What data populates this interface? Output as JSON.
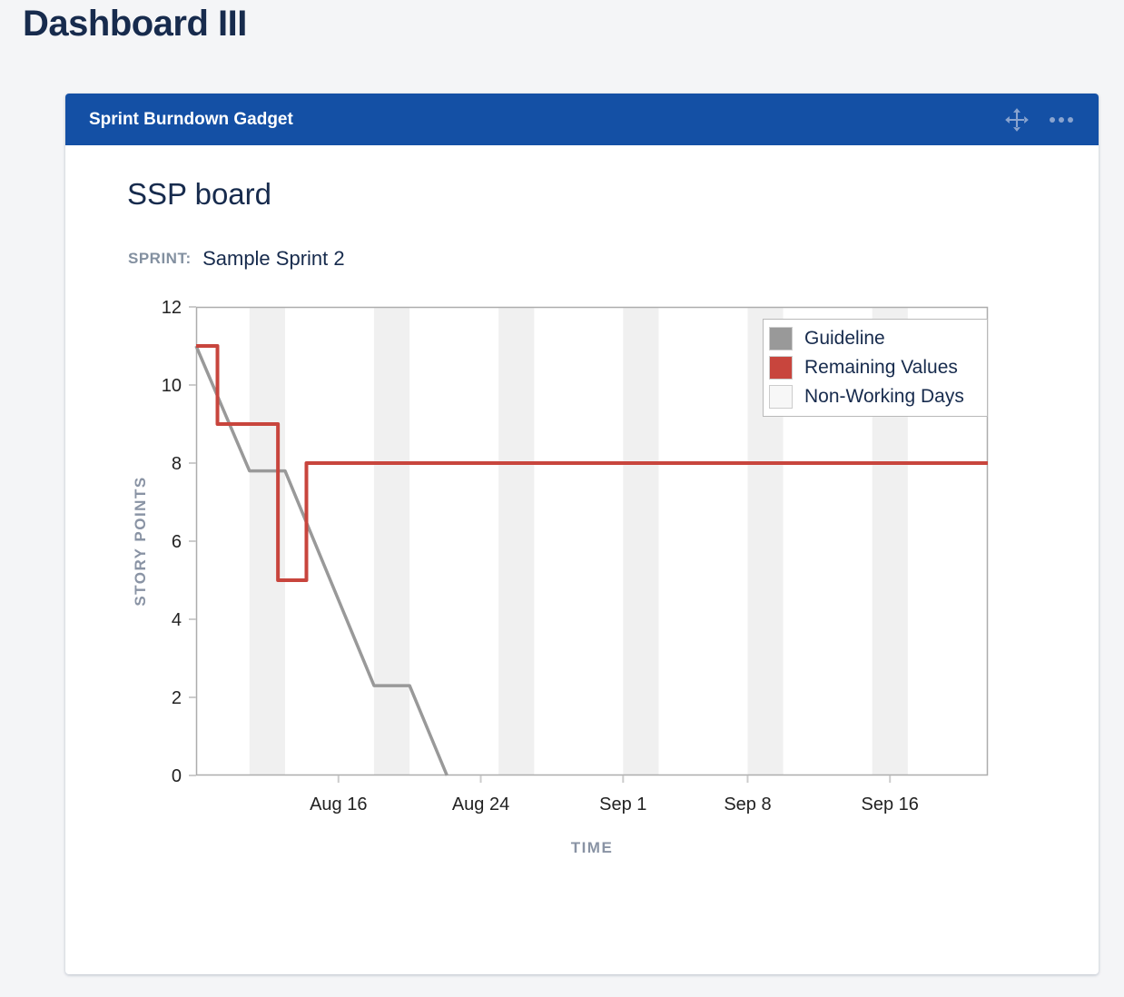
{
  "page": {
    "title": "Dashboard III",
    "background_color": "#f4f5f7"
  },
  "gadget": {
    "title": "Sprint Burndown Gadget",
    "header_color": "#1450a5",
    "icon_color": "#8aa4cf"
  },
  "board": {
    "title": "SSP board",
    "sprint_label": "SPRINT:",
    "sprint_value": "Sample Sprint 2"
  },
  "chart_data": {
    "type": "line",
    "title": "",
    "xlabel": "TIME",
    "ylabel": "STORY POINTS",
    "x_unit": "days (day 0 = Aug 7, chart spans Aug 8 to ~Sep 21)",
    "xlim": [
      1,
      45.5
    ],
    "ylim": [
      0,
      12
    ],
    "y_ticks": [
      0,
      2,
      4,
      6,
      8,
      10,
      12
    ],
    "x_ticks": [
      {
        "day": 9,
        "label": "Aug 16"
      },
      {
        "day": 17,
        "label": "Aug 24"
      },
      {
        "day": 25,
        "label": "Sep 1"
      },
      {
        "day": 32,
        "label": "Sep 8"
      },
      {
        "day": 40,
        "label": "Sep 16"
      }
    ],
    "grid": false,
    "band_color": "#f0f0f0",
    "axis_border_color": "#adadad",
    "tick_color": "#cccccc",
    "tick_label_color": "#222222",
    "non_working_day_bands": [
      [
        4,
        6
      ],
      [
        11,
        13
      ],
      [
        18,
        20
      ],
      [
        25,
        27
      ],
      [
        32,
        34
      ],
      [
        39,
        41
      ]
    ],
    "series": [
      {
        "name": "Guideline",
        "color": "#999999",
        "stroke_width": 3.5,
        "points": [
          [
            1,
            11
          ],
          [
            4,
            7.8
          ],
          [
            6,
            7.8
          ],
          [
            11,
            2.3
          ],
          [
            13,
            2.3
          ],
          [
            15.1,
            0
          ]
        ]
      },
      {
        "name": "Remaining Values",
        "color": "#c8453d",
        "stroke_width": 4,
        "points": [
          [
            1,
            11
          ],
          [
            2.2,
            11
          ],
          [
            2.2,
            9
          ],
          [
            5.6,
            9
          ],
          [
            5.6,
            5
          ],
          [
            7.2,
            5
          ],
          [
            7.2,
            8
          ],
          [
            45.5,
            8
          ]
        ]
      }
    ],
    "legend_position": "top-right",
    "legend": [
      {
        "label": "Guideline",
        "color": "#999999"
      },
      {
        "label": "Remaining Values",
        "color": "#c8453d"
      },
      {
        "label": "Non-Working Days",
        "color": "#f7f7f7"
      }
    ]
  }
}
